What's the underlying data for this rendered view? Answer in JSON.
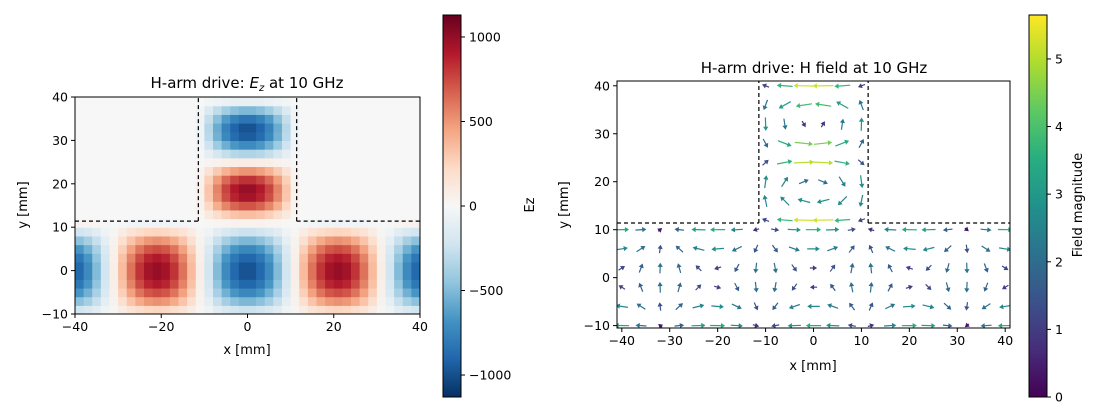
{
  "chart_data": [
    {
      "type": "heatmap",
      "title": "H-arm drive: E_z at 10 GHz",
      "title_parts": {
        "prefix": "H-arm drive: ",
        "var": "E",
        "sub": "z",
        "suffix": " at 10 GHz"
      },
      "xlabel": "x [mm]",
      "ylabel": "y [mm]",
      "xlim": [
        -40,
        40
      ],
      "ylim": [
        -10,
        40
      ],
      "xticks": [
        -40,
        -20,
        0,
        20,
        40
      ],
      "yticks": [
        -10,
        0,
        10,
        20,
        30,
        40
      ],
      "xtick_labels": [
        "−40",
        "−20",
        "0",
        "20",
        "40"
      ],
      "ytick_labels": [
        "−10",
        "0",
        "10",
        "20",
        "30",
        "40"
      ],
      "colormap": "RdBu_r",
      "clim": [
        -1130,
        1130
      ],
      "colorbar": {
        "label": "Ez",
        "ticks": [
          1000,
          500,
          0,
          -500,
          -1000
        ],
        "tick_labels": [
          "1000",
          "500",
          "0",
          "−500",
          "−1000"
        ]
      },
      "geometry": {
        "main_guide_y": [
          -10,
          11.4
        ],
        "arm_x": [
          -11.4,
          11.4
        ],
        "arm_y": [
          11.4,
          40
        ]
      },
      "field_model": {
        "main_guide": "Ez ≈ -1000·cos(2π·x/42)·cos(π·y/21.4)",
        "arm": "Ez ≈ 1000·cos(π·x/22.8)·sin(2π·(y-11.4)/28)"
      },
      "features": [
        {
          "x": 0,
          "y": 0,
          "value": -1100
        },
        {
          "x": -21,
          "y": 0,
          "value": 1000
        },
        {
          "x": 21,
          "y": 0,
          "value": 1000
        },
        {
          "x": 0,
          "y": 18.5,
          "value": 1000
        },
        {
          "x": 0,
          "y": 37,
          "value": -900
        }
      ]
    },
    {
      "type": "quiver",
      "title": "H-arm drive: H field at 10 GHz",
      "xlabel": "x [mm]",
      "ylabel": "y [mm]",
      "xlim": [
        -41,
        41
      ],
      "ylim": [
        -10.5,
        41
      ],
      "xticks": [
        -40,
        -30,
        -20,
        -10,
        0,
        10,
        20,
        30,
        40
      ],
      "yticks": [
        -10,
        0,
        10,
        20,
        30,
        40
      ],
      "xtick_labels": [
        "−40",
        "−30",
        "−20",
        "−10",
        "0",
        "10",
        "20",
        "30",
        "40"
      ],
      "ytick_labels": [
        "−10",
        "0",
        "10",
        "20",
        "30",
        "40"
      ],
      "colormap": "viridis",
      "clim": [
        0,
        5.65
      ],
      "colorbar": {
        "label": "Field magnitude",
        "ticks": [
          5,
          4,
          3,
          2,
          1,
          0
        ],
        "tick_labels": [
          "5",
          "4",
          "3",
          "2",
          "1",
          "0"
        ]
      },
      "geometry": {
        "main_guide_y": [
          -10.5,
          11.4
        ],
        "arm_x": [
          -11.4,
          11.4
        ],
        "arm_y": [
          11.4,
          41
        ]
      },
      "features": [
        {
          "x": 0,
          "y": 23.5,
          "magnitude": 5.5,
          "direction": "-x"
        },
        {
          "x": 0,
          "y": 40,
          "magnitude": 5.5,
          "direction": "+x"
        },
        {
          "x": 0,
          "y": 19,
          "magnitude": 4.2,
          "direction": "+x"
        },
        {
          "x": 0,
          "y": 7.5,
          "magnitude": 3.5,
          "direction": "+x"
        }
      ]
    }
  ]
}
